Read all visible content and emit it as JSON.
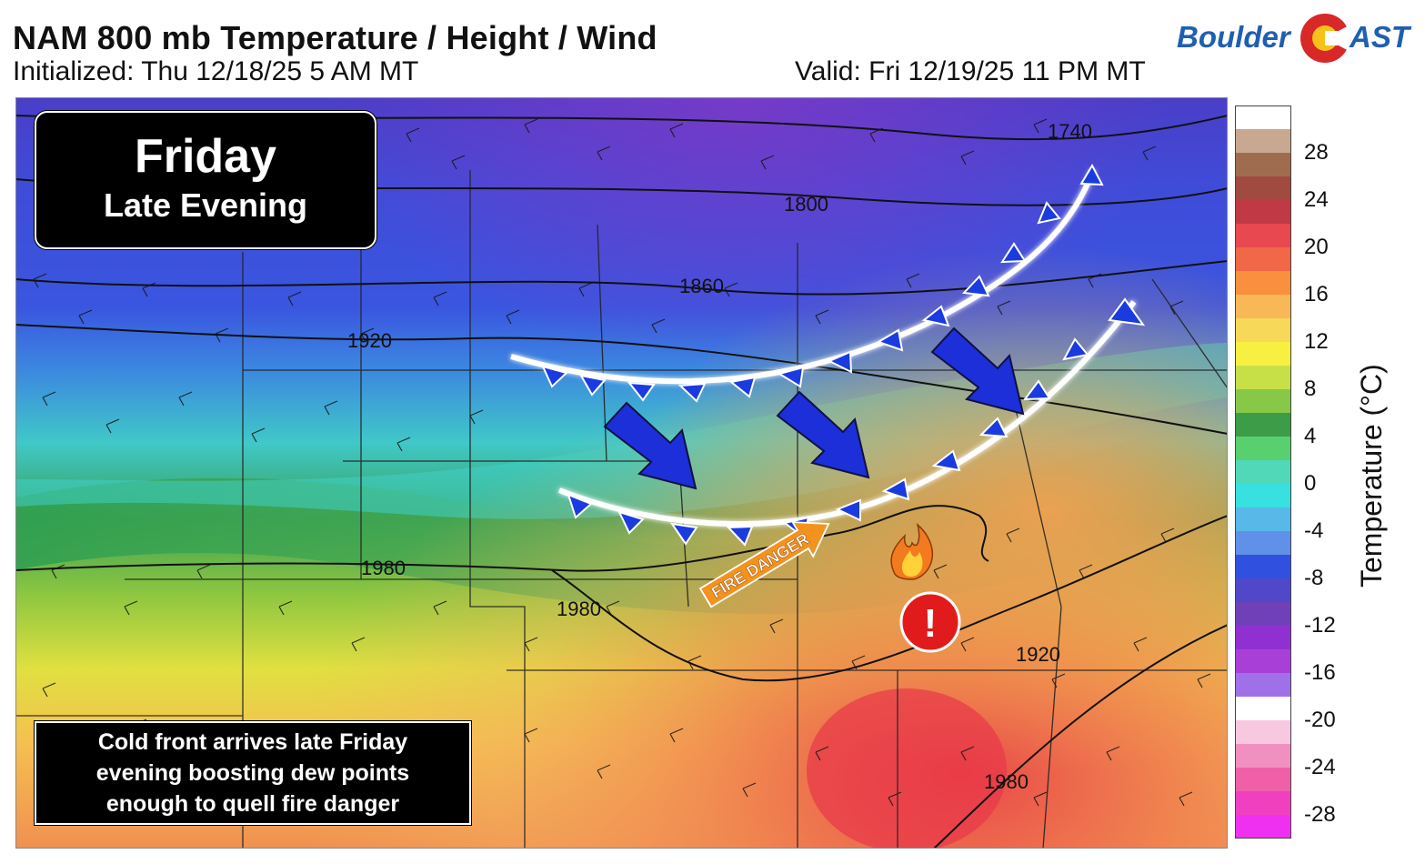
{
  "header": {
    "title": "NAM 800 mb Temperature / Height / Wind",
    "initialized": "Initialized: Thu 12/18/25 5 AM MT",
    "valid": "Valid: Fri 12/19/25 11 PM MT"
  },
  "logo": {
    "part1": "Boulder",
    "part2": "AST"
  },
  "time_tag": {
    "day": "Friday",
    "period": "Late Evening"
  },
  "note": {
    "lines": [
      "Cold front arrives late Friday",
      "evening boosting dew points",
      "enough to quell fire danger"
    ]
  },
  "callout": {
    "fire_label": "FIRE DANGER",
    "alert_symbol": "!"
  },
  "contours": {
    "labels": [
      "1740",
      "1800",
      "1860",
      "1920",
      "1980",
      "1980",
      "1920",
      "1980"
    ]
  },
  "colorbar": {
    "label": "Temperature (°C)",
    "ticks": [
      "28",
      "24",
      "20",
      "16",
      "12",
      "8",
      "4",
      "0",
      "-4",
      "-8",
      "-12",
      "-16",
      "-20",
      "-24",
      "-28"
    ],
    "colors": [
      "#ffffff",
      "#c8a890",
      "#a06c50",
      "#a04a40",
      "#c03a45",
      "#e84850",
      "#f06848",
      "#f89040",
      "#f8b858",
      "#f8d858",
      "#f8f040",
      "#c8e048",
      "#88c848",
      "#3c9c48",
      "#58d070",
      "#50d8b8",
      "#38e0e0",
      "#58b8e8",
      "#6090e8",
      "#3050e0",
      "#5048c8",
      "#7040b8",
      "#9030d0",
      "#a840d8",
      "#a070e8",
      "#ffffff",
      "#f8c8e0",
      "#f090c0",
      "#f060a8",
      "#f040c0",
      "#f030f0"
    ]
  },
  "colors": {
    "front_blue": "#1a3be0",
    "arrow_blue": "#1c2fd8",
    "fire_orange": "#f4921e",
    "alert_red": "#e11b1b",
    "logo_blue": "#1f5fb0"
  }
}
